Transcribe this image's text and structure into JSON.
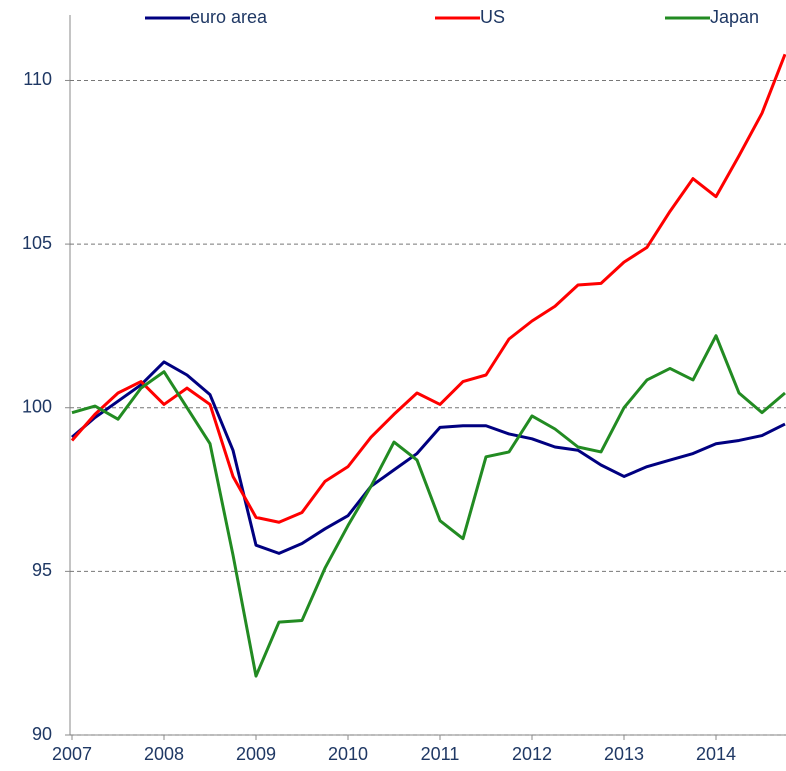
{
  "chart_data": {
    "type": "line",
    "categories": [
      "2007",
      null,
      null,
      null,
      "2008",
      null,
      null,
      null,
      "2009",
      null,
      null,
      null,
      "2010",
      null,
      null,
      null,
      "2011",
      null,
      null,
      null,
      "2012",
      null,
      null,
      null,
      "2013",
      null,
      null,
      null,
      "2014",
      null,
      null,
      null
    ],
    "series": [
      {
        "name": "euro area",
        "color": "#000080",
        "values": [
          99.1,
          99.7,
          100.2,
          100.7,
          101.4,
          101.0,
          100.4,
          98.7,
          95.8,
          95.55,
          95.85,
          96.3,
          96.7,
          97.6,
          98.1,
          98.6,
          99.4,
          99.45,
          99.45,
          99.2,
          99.05,
          98.8,
          98.7,
          98.25,
          97.9,
          98.2,
          98.4,
          98.6,
          98.9,
          99.0,
          99.15,
          99.5
        ]
      },
      {
        "name": "US",
        "color": "#ff0000",
        "values": [
          99.0,
          99.8,
          100.45,
          100.8,
          100.1,
          100.6,
          100.1,
          97.9,
          96.65,
          96.5,
          96.8,
          97.75,
          98.2,
          99.1,
          99.8,
          100.45,
          100.1,
          100.8,
          101.0,
          102.1,
          102.65,
          103.1,
          103.75,
          103.8,
          104.45,
          104.9,
          106.0,
          107.0,
          106.45,
          107.7,
          109.0,
          110.8
        ]
      },
      {
        "name": "Japan",
        "color": "#228b22",
        "values": [
          99.85,
          100.05,
          99.65,
          100.6,
          101.1,
          100.0,
          98.9,
          95.5,
          91.8,
          93.45,
          93.5,
          95.1,
          96.4,
          97.6,
          98.95,
          98.4,
          96.55,
          96.0,
          98.5,
          98.65,
          99.75,
          99.35,
          98.8,
          98.65,
          100.0,
          100.85,
          101.2,
          100.85,
          102.2,
          100.45,
          99.85,
          100.45
        ]
      }
    ],
    "ylim": [
      90,
      112
    ],
    "yticks": [
      90,
      95,
      100,
      105,
      110
    ],
    "grid": true
  }
}
